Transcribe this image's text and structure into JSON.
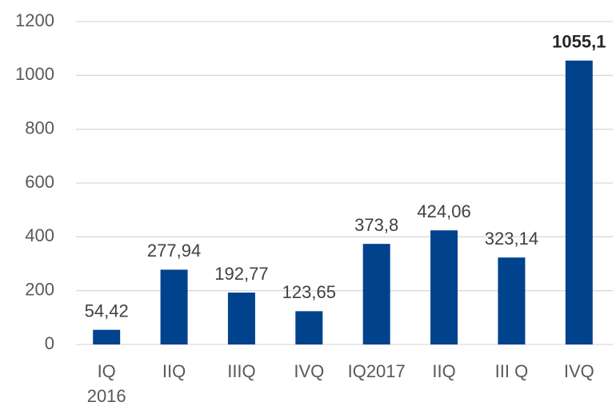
{
  "chart_data": {
    "type": "bar",
    "categories": [
      "IQ\n2016",
      "IIQ",
      "IIIQ",
      "IVQ",
      "IQ2017",
      "IIQ",
      "III Q",
      "IVQ"
    ],
    "values": [
      54.42,
      277.94,
      192.77,
      123.65,
      373.8,
      424.06,
      323.14,
      1055.1
    ],
    "value_labels": [
      "54,42",
      "277,94",
      "192,77",
      "123,65",
      "373,8",
      "424,06",
      "323,14",
      "1055,1"
    ],
    "bold_value_labels": [
      7
    ],
    "color": "#00428c",
    "ylim": [
      0,
      1200
    ],
    "yticks": [
      0,
      200,
      400,
      600,
      800,
      1000,
      1200
    ],
    "grid": true
  }
}
